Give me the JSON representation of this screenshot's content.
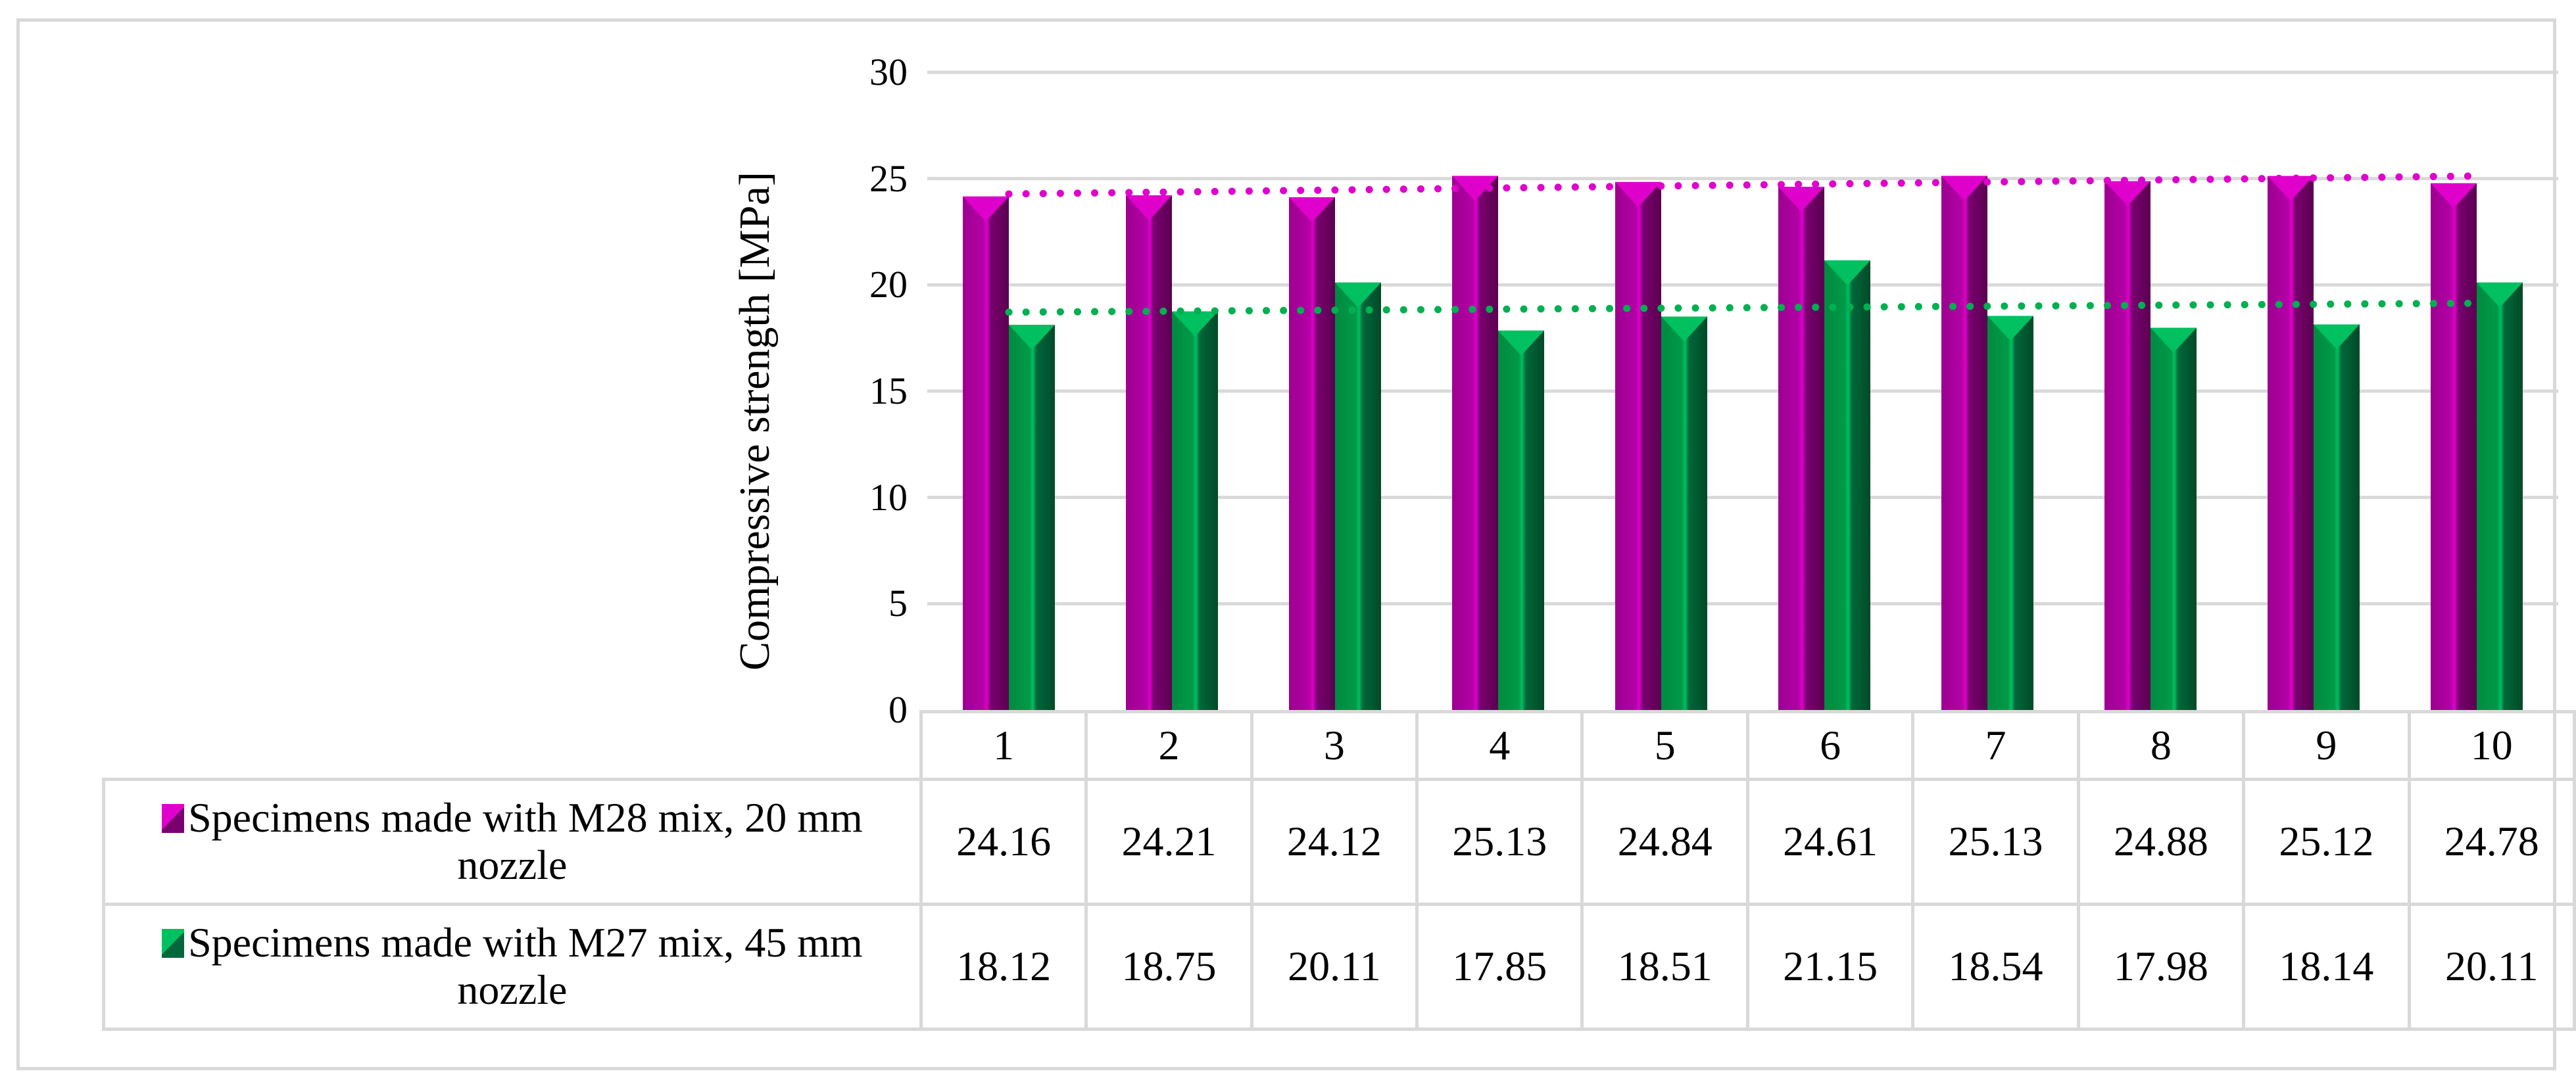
{
  "chart_data": {
    "type": "bar",
    "title": "",
    "xlabel": "",
    "ylabel": "Compressive strength [MPa]",
    "ylim": [
      0,
      30
    ],
    "yticks": [
      0,
      5,
      10,
      15,
      20,
      25,
      30
    ],
    "grid": true,
    "legend_position": "data-table",
    "categories": [
      "1",
      "2",
      "3",
      "4",
      "5",
      "6",
      "7",
      "8",
      "9",
      "10"
    ],
    "series": [
      {
        "name": "Specimens made with M28 mix, 20 mm nozzle",
        "color": "#b0009e",
        "values": [
          24.16,
          24.21,
          24.12,
          25.13,
          24.84,
          24.61,
          25.13,
          24.88,
          25.12,
          24.78
        ],
        "trendline": "linear, dotted"
      },
      {
        "name": "Specimens made with M27 mix, 45 mm nozzle",
        "color": "#00a050",
        "values": [
          18.12,
          18.75,
          20.11,
          17.85,
          18.51,
          21.15,
          18.54,
          17.98,
          18.14,
          20.11
        ],
        "trendline": "linear, dotted"
      }
    ]
  },
  "table": {
    "row_labels": [
      "Specimens made with M28 mix, 20 mm nozzle",
      "Specimens made with M27 mix, 45 mm nozzle"
    ]
  }
}
